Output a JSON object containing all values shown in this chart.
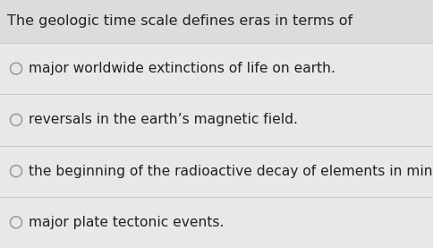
{
  "question": "The geologic time scale defines eras in terms of",
  "options": [
    "major worldwide extinctions of life on earth.",
    "reversals in the earth’s magnetic field.",
    "the beginning of the radioactive decay of elements in minerals.",
    "major plate tectonic events."
  ],
  "bg_color": "#dcdcdc",
  "row_color": "#e8e8e8",
  "separator_color": "#c8c8c8",
  "question_fontsize": 11.5,
  "option_fontsize": 11.2,
  "text_color": "#222222",
  "circle_color": "#999999",
  "fig_width": 4.85,
  "fig_height": 2.77,
  "dpi": 100
}
